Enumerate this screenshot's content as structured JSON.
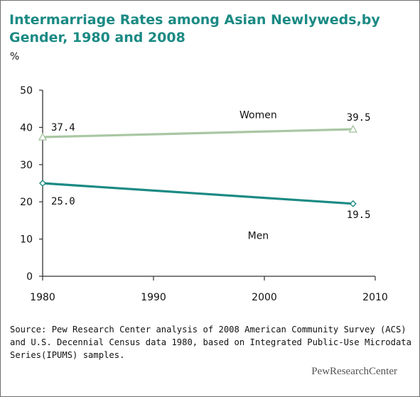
{
  "chart_data": {
    "type": "line",
    "title": "Intermarriage Rates among Asian Newlyweds,by Gender, 1980 and 2008",
    "unit_label": "%",
    "x_ticks": [
      "1980",
      "1990",
      "2000",
      "2010"
    ],
    "y_ticks": [
      "0",
      "10",
      "20",
      "30",
      "40",
      "50"
    ],
    "xlim": [
      1980,
      2010
    ],
    "ylim": [
      0,
      50
    ],
    "grid": false,
    "series": [
      {
        "name": "Women",
        "color": "#a9c7a3",
        "marker": "triangle",
        "points": [
          {
            "x": 1980,
            "y": 37.4,
            "label": "37.4"
          },
          {
            "x": 2008,
            "y": 39.5,
            "label": "39.5"
          }
        ]
      },
      {
        "name": "Men",
        "color": "#1b8a84",
        "marker": "diamond",
        "points": [
          {
            "x": 1980,
            "y": 25.0,
            "label": "25.0"
          },
          {
            "x": 2008,
            "y": 19.5,
            "label": "19.5"
          }
        ]
      }
    ]
  },
  "source_text": "Source: Pew Research Center analysis of 2008 American Community Survey (ACS) and U.S. Decennial Census data 1980, based on Integrated Public-Use Microdata Series(IPUMS) samples.",
  "brand": "PewResearchCenter"
}
